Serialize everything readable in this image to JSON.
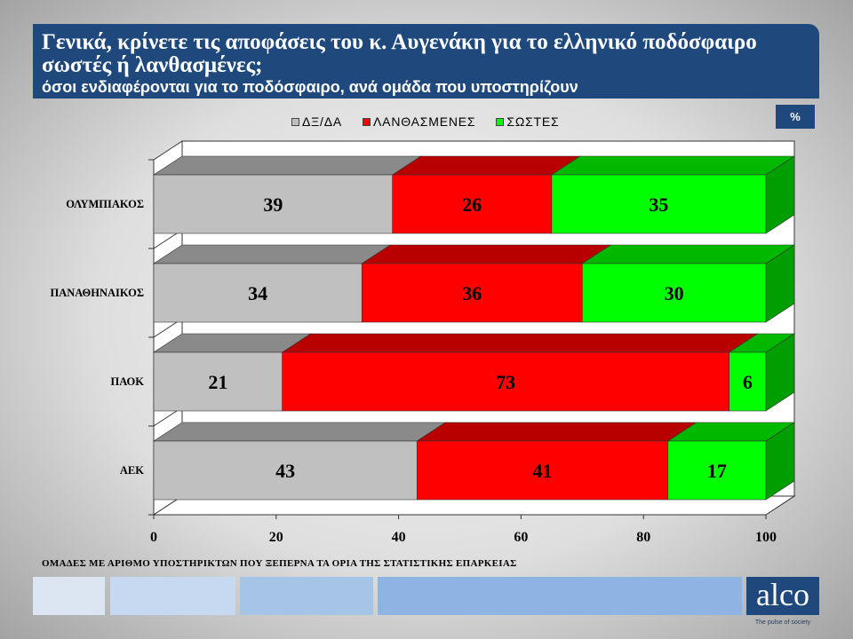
{
  "header": {
    "title_lines": [
      "Γενικά, κρίνετε τις αποφάσεις του κ. Αυγενάκη για το ελληνικό ποδόσφαιρο",
      "σωστές ή λανθασμένες;"
    ],
    "subtitle": "όσοι ενδιαφέρονται για το ποδόσφαιρο, ανά ομάδα που υποστηρίζουν"
  },
  "unit_badge": "%",
  "footnote": "ΟΜΑΔΕΣ ΜΕ ΑΡΙΘΜΟ ΥΠΟΣΤΗΡΙΚΤΩΝ ΠΟΥ ΞΕΠΕΡΝΑ ΤΑ ΟΡΙΑ ΤΗΣ ΣΤΑΤΙΣΤΙΚΗΣ ΕΠΑΡΚΕΙΑΣ",
  "logo": {
    "wordmark": "alco",
    "tagline": "The pulse of society"
  },
  "theme": {
    "accent": "#1f497d"
  },
  "chart_data": {
    "type": "bar",
    "orientation": "horizontal",
    "stacked": true,
    "three_d": true,
    "categories": [
      "ΟΛΥΜΠΙΑΚΟΣ",
      "ΠΑΝΑΘΗΝΑΙΚΟΣ",
      "ΠΑΟΚ",
      "ΑΕΚ"
    ],
    "series": [
      {
        "name": "ΔΞ/ΔΑ",
        "color": "#c0c0c0",
        "values": [
          39,
          34,
          21,
          43
        ]
      },
      {
        "name": "ΛΑΝΘΑΣΜΕΝΕΣ",
        "color": "#ff0000",
        "values": [
          26,
          36,
          73,
          41
        ]
      },
      {
        "name": "ΣΩΣΤΕΣ",
        "color": "#00ff00",
        "values": [
          35,
          30,
          6,
          17
        ]
      }
    ],
    "xlim": [
      0,
      100
    ],
    "xticks": [
      0,
      20,
      40,
      60,
      80,
      100
    ],
    "data_labels": true,
    "legend_position": "top",
    "grid": false
  }
}
